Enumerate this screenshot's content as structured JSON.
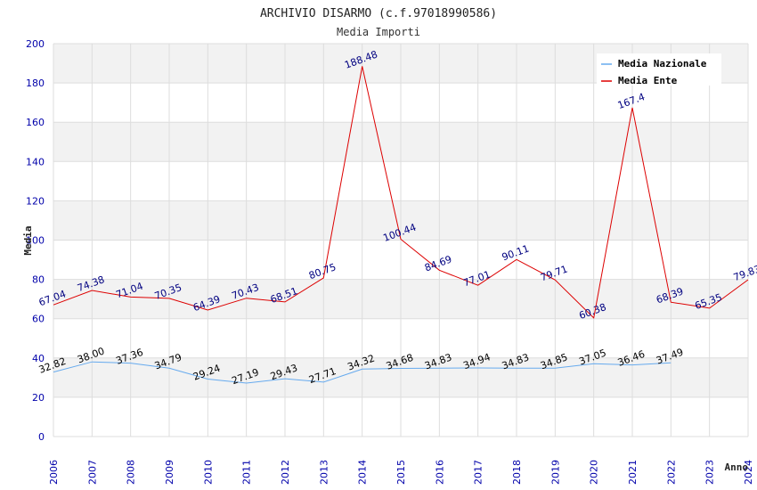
{
  "chart_data": {
    "type": "line",
    "title": "ARCHIVIO DISARMO (c.f.97018990586)",
    "subtitle": "Media Importi",
    "ylabel": "Media",
    "xlabel": "Anno",
    "ylim": [
      0,
      200
    ],
    "yticks": [
      0,
      20,
      40,
      60,
      80,
      100,
      120,
      140,
      160,
      180,
      200
    ],
    "x": [
      2006,
      2007,
      2008,
      2009,
      2010,
      2011,
      2012,
      2013,
      2014,
      2015,
      2016,
      2017,
      2018,
      2019,
      2020,
      2021,
      2022,
      2023,
      2024
    ],
    "grid": true,
    "legend_position": "top-right",
    "series": [
      {
        "name": "Media Nazionale",
        "color": "#66aaee",
        "label_color": "#000000",
        "values": [
          32.82,
          38.0,
          37.36,
          34.79,
          29.24,
          27.19,
          29.43,
          27.71,
          34.32,
          34.68,
          34.83,
          34.94,
          34.83,
          34.85,
          37.05,
          36.46,
          37.49,
          null,
          null
        ],
        "labels": [
          "32.82",
          "38.00",
          "37.36",
          "34.79",
          "29.24",
          "27.19",
          "29.43",
          "27.71",
          "34.32",
          "34.68",
          "34.83",
          "34.94",
          "34.83",
          "34.85",
          "37.05",
          "36.46",
          "37.49",
          "",
          ""
        ]
      },
      {
        "name": "Media Ente",
        "color": "#dd0000",
        "label_color": "#000080",
        "values": [
          67.04,
          74.38,
          71.04,
          70.35,
          64.39,
          70.43,
          68.51,
          80.75,
          188.48,
          100.44,
          84.69,
          77.01,
          90.11,
          79.71,
          60.38,
          167.4,
          68.39,
          65.35,
          79.83
        ],
        "labels": [
          "67.04",
          "74.38",
          "71.04",
          "70.35",
          "64.39",
          "70.43",
          "68.51",
          "80.75",
          "188.48",
          "100.44",
          "84.69",
          "77.01",
          "90.11",
          "79.71",
          "60.38",
          "167.4",
          "68.39",
          "65.35",
          "79.83"
        ]
      }
    ]
  }
}
